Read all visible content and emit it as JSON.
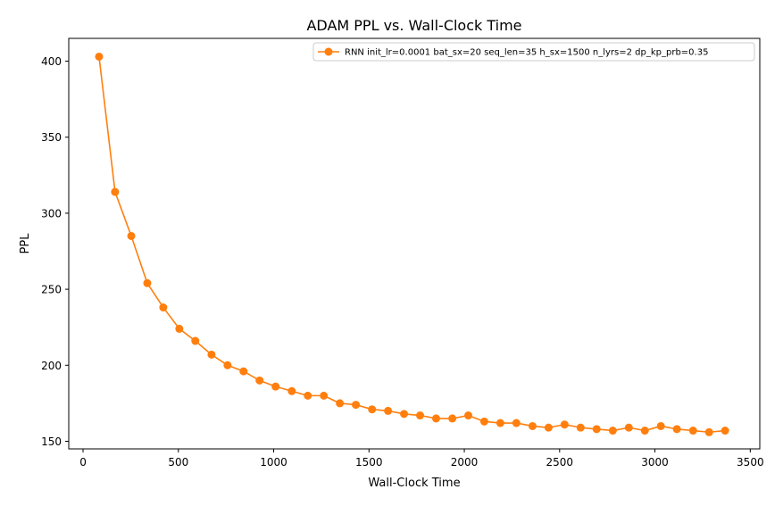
{
  "chart_data": {
    "type": "line",
    "title": "ADAM PPL vs. Wall-Clock Time",
    "xlabel": "Wall-Clock Time",
    "ylabel": "PPL",
    "xlim": [
      -75,
      3550
    ],
    "ylim": [
      145,
      415
    ],
    "xticks": [
      0,
      500,
      1000,
      1500,
      2000,
      2500,
      3000,
      3500
    ],
    "yticks": [
      150,
      200,
      250,
      300,
      350,
      400
    ],
    "grid": false,
    "legend_position": "top-right",
    "series": [
      {
        "name": "RNN init_lr=0.0001 bat_sx=20 seq_len=35 h_sx=1500 n_lyrs=2 dp_kp_prb=0.35",
        "color": "#ff7f0e",
        "marker": "circle",
        "x": [
          84,
          168,
          253,
          337,
          421,
          505,
          589,
          674,
          758,
          842,
          926,
          1010,
          1095,
          1179,
          1263,
          1347,
          1431,
          1516,
          1600,
          1684,
          1768,
          1852,
          1937,
          2021,
          2105,
          2189,
          2273,
          2358,
          2442,
          2526,
          2610,
          2694,
          2779,
          2863,
          2947,
          3031,
          3115,
          3200,
          3284,
          3368
        ],
        "y": [
          403,
          314,
          285,
          254,
          238,
          224,
          216,
          207,
          200,
          196,
          190,
          186,
          183,
          180,
          180,
          175,
          174,
          171,
          170,
          168,
          167,
          165,
          165,
          167,
          163,
          162,
          162,
          160,
          159,
          161,
          159,
          158,
          157,
          159,
          157,
          160,
          158,
          157,
          156,
          157
        ]
      }
    ]
  }
}
